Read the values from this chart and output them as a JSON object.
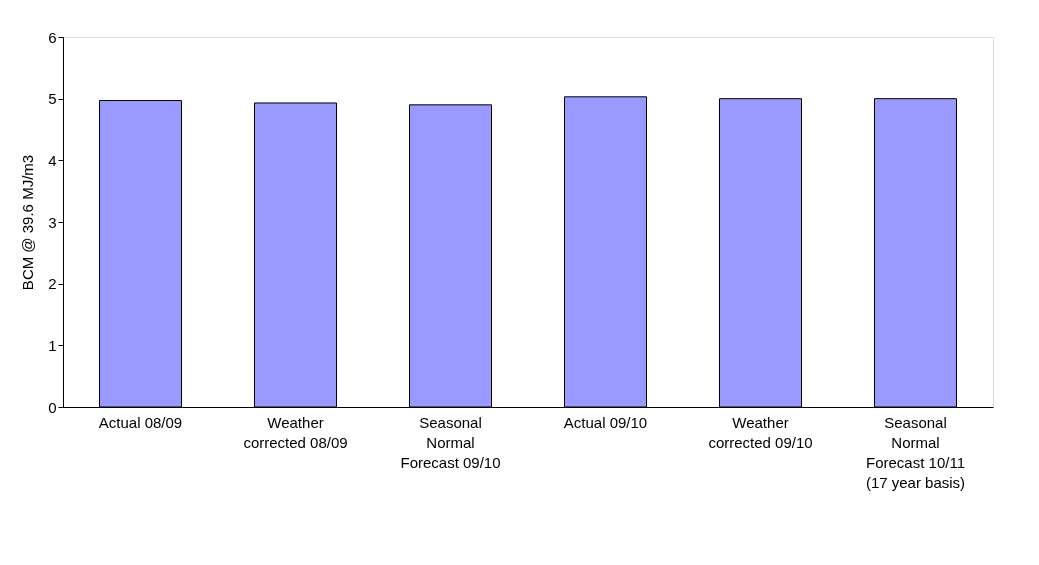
{
  "chart_data": {
    "type": "bar",
    "ylabel": "BCM @ 39.6 MJ/m3",
    "categories": [
      "Actual 08/09",
      "Weather\ncorrected 08/09",
      "Seasonal\nNormal\nForecast 09/10",
      "Actual 09/10",
      "Weather\ncorrected 09/10",
      "Seasonal\nNormal\nForecast 10/11\n(17 year basis)"
    ],
    "values": [
      4.97,
      4.93,
      4.9,
      5.03,
      5.0,
      5.0
    ],
    "color": "#9999ff",
    "ylim": [
      0,
      6
    ],
    "yticks": [
      0,
      1,
      2,
      3,
      4,
      5,
      6
    ],
    "grid": false
  }
}
